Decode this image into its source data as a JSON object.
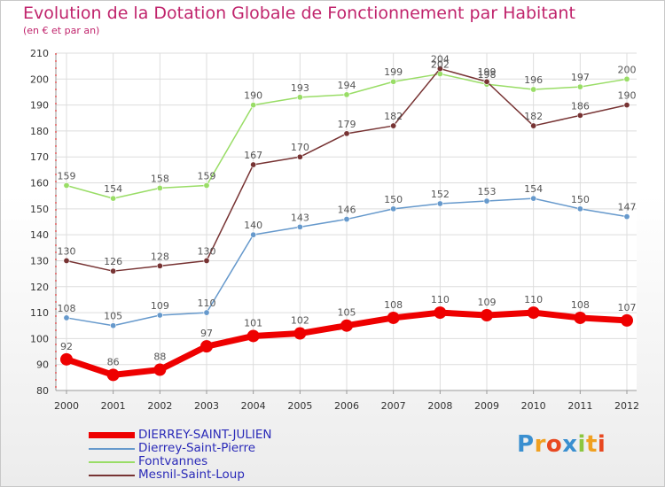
{
  "header": {
    "title": "Evolution de la Dotation Globale de Fonctionnement par Habitant",
    "subtitle": "(en € et par an)"
  },
  "logo": {
    "text": "Proxiti",
    "letters": [
      {
        "char": "P",
        "color": "#3a8fd0"
      },
      {
        "char": "r",
        "color": "#f0a020"
      },
      {
        "char": "o",
        "color": "#e84820"
      },
      {
        "char": "x",
        "color": "#3a8fd0"
      },
      {
        "char": "i",
        "color": "#8cc63f"
      },
      {
        "char": "t",
        "color": "#f0a020"
      },
      {
        "char": "i",
        "color": "#e84820"
      }
    ]
  },
  "chart_data": {
    "type": "line",
    "title": "Evolution de la Dotation Globale de Fonctionnement par Habitant",
    "subtitle": "(en € et par an)",
    "x": [
      "2000",
      "2001",
      "2002",
      "2003",
      "2004",
      "2005",
      "2006",
      "2007",
      "2008",
      "2009",
      "2010",
      "2011",
      "2012"
    ],
    "ylim": [
      80,
      210
    ],
    "yticks": [
      80,
      90,
      100,
      110,
      120,
      130,
      140,
      150,
      160,
      170,
      180,
      190,
      200,
      210
    ],
    "grid": true,
    "legend_position": "bottom-left",
    "series": [
      {
        "name": "DIERREY-SAINT-JULIEN",
        "color": "#ee0000",
        "emphasis": true,
        "values": [
          92,
          86,
          88,
          97,
          101,
          102,
          105,
          108,
          110,
          109,
          110,
          108,
          107
        ]
      },
      {
        "name": "Dierrey-Saint-Pierre",
        "color": "#6699cc",
        "values": [
          108,
          105,
          109,
          110,
          140,
          143,
          146,
          150,
          152,
          153,
          154,
          150,
          147
        ]
      },
      {
        "name": "Fontvannes",
        "color": "#99dd66",
        "values": [
          159,
          154,
          158,
          159,
          190,
          193,
          194,
          199,
          202,
          198,
          196,
          197,
          200
        ]
      },
      {
        "name": "Mesnil-Saint-Loup",
        "color": "#773333",
        "values": [
          130,
          126,
          128,
          130,
          167,
          170,
          179,
          182,
          204,
          199,
          182,
          186,
          190
        ]
      }
    ]
  }
}
